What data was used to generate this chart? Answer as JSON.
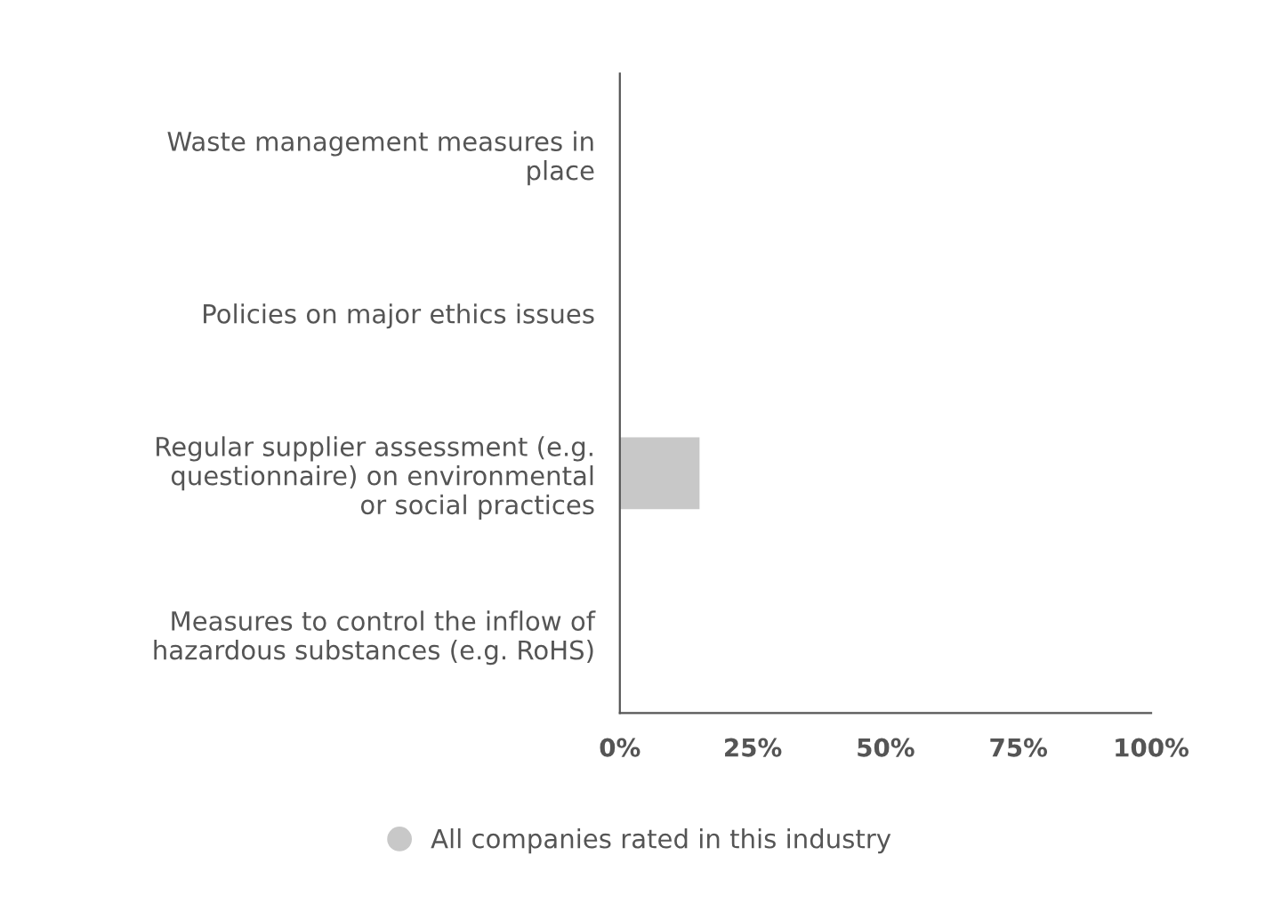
{
  "chart_data": {
    "type": "bar",
    "orientation": "horizontal",
    "categories": [
      "Waste management measures in\nplace",
      "Policies on major ethics issues",
      "Regular supplier assessment (e.g.\nquestionnaire) on environmental\nor social practices",
      "Measures to control the inflow of\nhazardous substances (e.g. RoHS)"
    ],
    "series": [
      {
        "name": "All companies rated in this industry",
        "color": "#c8c8c8",
        "values": [
          0,
          0,
          15,
          0
        ]
      }
    ],
    "xlim": [
      0,
      100
    ],
    "xticks": [
      {
        "value": 0,
        "label": "0%"
      },
      {
        "value": 25,
        "label": "25%"
      },
      {
        "value": 50,
        "label": "50%"
      },
      {
        "value": 75,
        "label": "75%"
      },
      {
        "value": 100,
        "label": "100%"
      }
    ],
    "grid": false,
    "legend": "bottom"
  }
}
